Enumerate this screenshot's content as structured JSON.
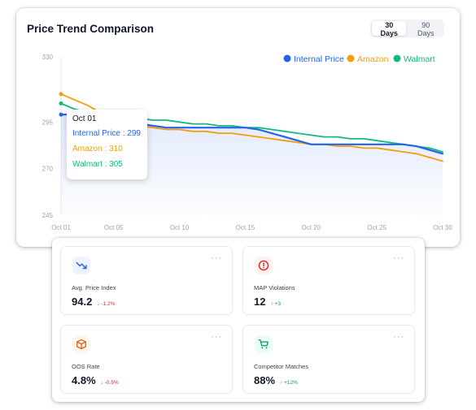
{
  "header": {
    "title": "Price Trend Comparison",
    "range_options": [
      "30 Days",
      "90 Days"
    ],
    "selected_range": "30 Days"
  },
  "colors": {
    "internal": "#2563eb",
    "amazon": "#f59e0b",
    "walmart": "#10b981",
    "grid": "#e5e7eb",
    "axis_text": "#9ca3af",
    "down": "#dc2626",
    "up": "#059669"
  },
  "chart_data": {
    "type": "line",
    "x": [
      "Oct 01",
      "Oct 02",
      "Oct 03",
      "Oct 04",
      "Oct 05",
      "Oct 06",
      "Oct 07",
      "Oct 08",
      "Oct 09",
      "Oct 10",
      "Oct 11",
      "Oct 12",
      "Oct 13",
      "Oct 14",
      "Oct 15",
      "Oct 16",
      "Oct 17",
      "Oct 18",
      "Oct 19",
      "Oct 20",
      "Oct 21",
      "Oct 22",
      "Oct 23",
      "Oct 24",
      "Oct 25",
      "Oct 26",
      "Oct 27",
      "Oct 28",
      "Oct 29",
      "Oct 30"
    ],
    "xticks": [
      "Oct 01",
      "Oct 05",
      "Oct 10",
      "Oct 15",
      "Oct 20",
      "Oct 25",
      "Oct 30"
    ],
    "ylim": [
      245,
      330
    ],
    "yticks": [
      245,
      270,
      295,
      330
    ],
    "grid": false,
    "legend_position": "top-right",
    "series": [
      {
        "name": "Internal Price",
        "key": "internal",
        "values": [
          299,
          299,
          299,
          299,
          298,
          295,
          294,
          293,
          292,
          292,
          292,
          292,
          292,
          292,
          292,
          291,
          289,
          287,
          285,
          283,
          283,
          283,
          283,
          283,
          283,
          283,
          283,
          282,
          280,
          278
        ]
      },
      {
        "name": "Amazon",
        "key": "amazon",
        "values": [
          310,
          307,
          304,
          300,
          296,
          294,
          293,
          292,
          291,
          291,
          290,
          290,
          289,
          289,
          288,
          287,
          286,
          285,
          284,
          283,
          283,
          282,
          282,
          281,
          281,
          280,
          279,
          278,
          276,
          274
        ]
      },
      {
        "name": "Walmart",
        "key": "walmart",
        "values": [
          305,
          302,
          300,
          299,
          298,
          297,
          297,
          296,
          296,
          295,
          294,
          294,
          293,
          293,
          292,
          292,
          291,
          290,
          289,
          288,
          287,
          287,
          286,
          286,
          285,
          284,
          283,
          282,
          281,
          279
        ]
      }
    ],
    "tooltip": {
      "date": "Oct 01",
      "rows": [
        {
          "label": "Internal Price : 299",
          "key": "internal"
        },
        {
          "label": "Amazon : 310",
          "key": "amazon"
        },
        {
          "label": "Walmart : 305",
          "key": "walmart"
        }
      ]
    }
  },
  "kpis": [
    {
      "name": "avg-price-index",
      "icon": "trending-down-icon",
      "icon_color": "#2563eb",
      "icon_bg": "#eef2ff",
      "label": "Avg. Price Index",
      "value": "94.2",
      "delta": "↓ -1.2%",
      "direction": "down"
    },
    {
      "name": "map-violations",
      "icon": "alert-circle-icon",
      "icon_color": "#dc2626",
      "icon_bg": "#fef2f2",
      "label": "MAP Violations",
      "value": "12",
      "delta": "↑ +3",
      "direction": "up"
    },
    {
      "name": "oos-rate",
      "icon": "package-icon",
      "icon_color": "#ea580c",
      "icon_bg": "#fff7ed",
      "label": "OOS Rate",
      "value": "4.8%",
      "delta": "↓ -0.5%",
      "direction": "down"
    },
    {
      "name": "competitor-matches",
      "icon": "cart-icon",
      "icon_color": "#059669",
      "icon_bg": "#ecfdf5",
      "label": "Competitor Matches",
      "value": "88%",
      "delta": "↑ +12%",
      "direction": "up"
    }
  ],
  "more_label": "···"
}
